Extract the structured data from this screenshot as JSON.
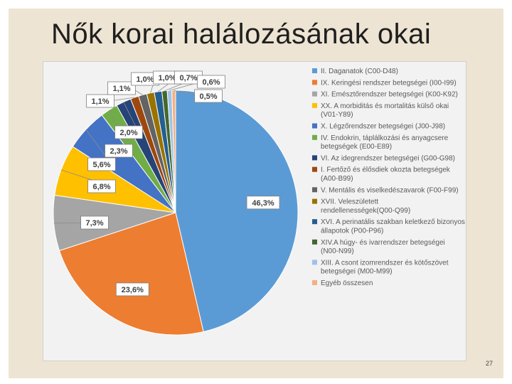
{
  "slide": {
    "title": "Nők korai halálozásának okai",
    "page_number": "27"
  },
  "chart_data": {
    "type": "pie",
    "title": "",
    "legend_position": "right",
    "slices": [
      {
        "label": "II. Daganatok (C00-D48)",
        "value": 46.3,
        "display": "46,3%",
        "color": "#5b9bd5"
      },
      {
        "label": "IX. Keringési rendszer betegségei (I00-I99)",
        "value": 23.6,
        "display": "23,6%",
        "color": "#ed7d31"
      },
      {
        "label": "XI. Emésztőrendszer betegségei (K00-K92)",
        "value": 7.3,
        "display": "7,3%",
        "color": "#a5a5a5"
      },
      {
        "label": "XX. A morbiditás és mortalitás külső okai (V01-Y89)",
        "value": 6.8,
        "display": "6,8%",
        "color": "#ffc000"
      },
      {
        "label": "X. Légzőrendszer betegségei (J00-J98)",
        "value": 5.6,
        "display": "5,6%",
        "color": "#4472c4"
      },
      {
        "label": "IV. Endokrin, táplálkozási és anyagcsere betegségek (E00-E89)",
        "value": 2.3,
        "display": "2,3%",
        "color": "#70ad47"
      },
      {
        "label": "VI. Az idegrendszer betegségei (G00-G98)",
        "value": 2.0,
        "display": "2,0%",
        "color": "#264478"
      },
      {
        "label": "I. Fertőző és élősdiek okozta betegségek (A00-B99)",
        "value": 1.1,
        "display": "1,1%",
        "color": "#9e480e"
      },
      {
        "label": "V. Mentális és viselkedészavarok (F00-F99)",
        "value": 1.1,
        "display": "1,1%",
        "color": "#636363"
      },
      {
        "label": "XVII. Veleszületett rendellenességek(Q00-Q99)",
        "value": 1.0,
        "display": "1,0%",
        "color": "#997300"
      },
      {
        "label": "XVI. A perinatális szakban keletkező bizonyos állapotok (P00-P96)",
        "value": 1.0,
        "display": "1,0%",
        "color": "#255e91"
      },
      {
        "label": "XIV.A húgy- és ivarrendszer betegségei (N00-N99)",
        "value": 0.7,
        "display": "0,7%",
        "color": "#43682b"
      },
      {
        "label": "XIII. A csont izomrendszer és kötőszövet betegségei (M00-M99)",
        "value": 0.6,
        "display": "0,6%",
        "color": "#9dc3e6"
      },
      {
        "label": "Egyéb összesen",
        "value": 0.5,
        "display": "0,5%",
        "color": "#f4b183"
      }
    ]
  }
}
